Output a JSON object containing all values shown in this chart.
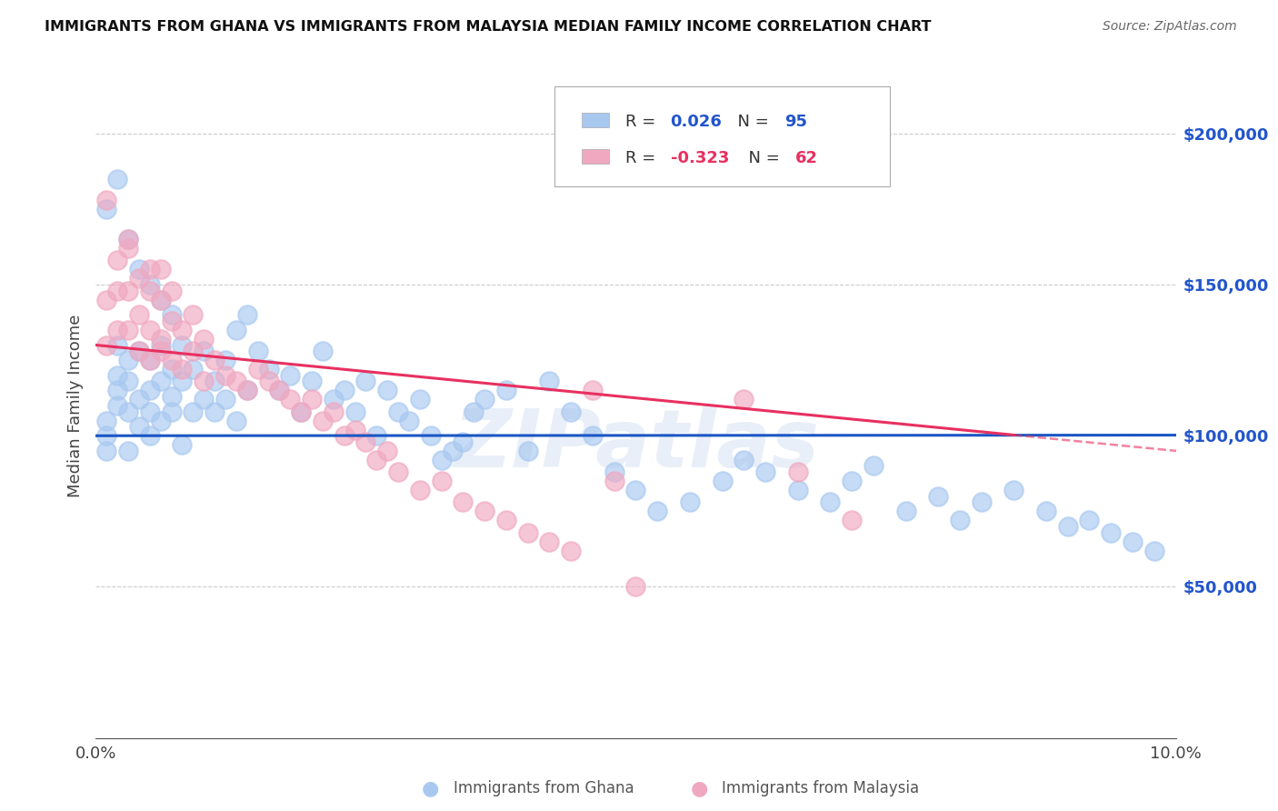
{
  "title": "IMMIGRANTS FROM GHANA VS IMMIGRANTS FROM MALAYSIA MEDIAN FAMILY INCOME CORRELATION CHART",
  "source": "Source: ZipAtlas.com",
  "ylabel": "Median Family Income",
  "xlim": [
    0.0,
    0.1
  ],
  "ylim": [
    0,
    220000
  ],
  "yticks_right": [
    50000,
    100000,
    150000,
    200000
  ],
  "ytick_labels_right": [
    "$50,000",
    "$100,000",
    "$150,000",
    "$200,000"
  ],
  "ghana_R": "0.026",
  "ghana_N": "95",
  "malaysia_R": "-0.323",
  "malaysia_N": "62",
  "ghana_dot_color": "#a8c8f0",
  "malaysia_dot_color": "#f0a8c0",
  "ghana_line_color": "#1a56c4",
  "malaysia_line_color": "#e83060",
  "legend_label_ghana": "Immigrants from Ghana",
  "legend_label_malaysia": "Immigrants from Malaysia",
  "watermark": "ZIPatlas",
  "ghana_x": [
    0.001,
    0.001,
    0.001,
    0.002,
    0.002,
    0.002,
    0.002,
    0.003,
    0.003,
    0.003,
    0.003,
    0.004,
    0.004,
    0.004,
    0.005,
    0.005,
    0.005,
    0.005,
    0.006,
    0.006,
    0.006,
    0.007,
    0.007,
    0.007,
    0.008,
    0.008,
    0.008,
    0.009,
    0.009,
    0.01,
    0.01,
    0.011,
    0.011,
    0.012,
    0.012,
    0.013,
    0.013,
    0.014,
    0.014,
    0.015,
    0.016,
    0.017,
    0.018,
    0.019,
    0.02,
    0.021,
    0.022,
    0.023,
    0.024,
    0.025,
    0.026,
    0.027,
    0.028,
    0.029,
    0.03,
    0.031,
    0.032,
    0.033,
    0.034,
    0.035,
    0.036,
    0.038,
    0.04,
    0.042,
    0.044,
    0.046,
    0.048,
    0.05,
    0.052,
    0.055,
    0.058,
    0.06,
    0.062,
    0.065,
    0.068,
    0.07,
    0.072,
    0.075,
    0.078,
    0.08,
    0.082,
    0.085,
    0.088,
    0.09,
    0.092,
    0.094,
    0.096,
    0.098,
    0.001,
    0.002,
    0.003,
    0.004,
    0.005,
    0.006,
    0.007
  ],
  "ghana_y": [
    100000,
    95000,
    105000,
    120000,
    110000,
    115000,
    130000,
    108000,
    95000,
    125000,
    118000,
    112000,
    103000,
    128000,
    100000,
    115000,
    125000,
    108000,
    118000,
    105000,
    130000,
    113000,
    122000,
    108000,
    97000,
    118000,
    130000,
    108000,
    122000,
    112000,
    128000,
    118000,
    108000,
    125000,
    112000,
    135000,
    105000,
    140000,
    115000,
    128000,
    122000,
    115000,
    120000,
    108000,
    118000,
    128000,
    112000,
    115000,
    108000,
    118000,
    100000,
    115000,
    108000,
    105000,
    112000,
    100000,
    92000,
    95000,
    98000,
    108000,
    112000,
    115000,
    95000,
    118000,
    108000,
    100000,
    88000,
    82000,
    75000,
    78000,
    85000,
    92000,
    88000,
    82000,
    78000,
    85000,
    90000,
    75000,
    80000,
    72000,
    78000,
    82000,
    75000,
    70000,
    72000,
    68000,
    65000,
    62000,
    175000,
    185000,
    165000,
    155000,
    150000,
    145000,
    140000
  ],
  "malaysia_x": [
    0.001,
    0.001,
    0.002,
    0.002,
    0.002,
    0.003,
    0.003,
    0.003,
    0.004,
    0.004,
    0.004,
    0.005,
    0.005,
    0.005,
    0.006,
    0.006,
    0.006,
    0.006,
    0.007,
    0.007,
    0.008,
    0.008,
    0.009,
    0.01,
    0.01,
    0.011,
    0.012,
    0.013,
    0.014,
    0.015,
    0.016,
    0.017,
    0.018,
    0.019,
    0.02,
    0.021,
    0.022,
    0.023,
    0.024,
    0.025,
    0.026,
    0.027,
    0.028,
    0.03,
    0.032,
    0.034,
    0.036,
    0.038,
    0.04,
    0.042,
    0.044,
    0.046,
    0.048,
    0.05,
    0.06,
    0.065,
    0.07,
    0.001,
    0.003,
    0.005,
    0.007,
    0.009
  ],
  "malaysia_y": [
    145000,
    130000,
    158000,
    148000,
    135000,
    165000,
    148000,
    135000,
    152000,
    140000,
    128000,
    148000,
    135000,
    125000,
    145000,
    132000,
    155000,
    128000,
    138000,
    125000,
    135000,
    122000,
    128000,
    132000,
    118000,
    125000,
    120000,
    118000,
    115000,
    122000,
    118000,
    115000,
    112000,
    108000,
    112000,
    105000,
    108000,
    100000,
    102000,
    98000,
    92000,
    95000,
    88000,
    82000,
    85000,
    78000,
    75000,
    72000,
    68000,
    65000,
    62000,
    115000,
    85000,
    50000,
    112000,
    88000,
    72000,
    178000,
    162000,
    155000,
    148000,
    140000
  ]
}
